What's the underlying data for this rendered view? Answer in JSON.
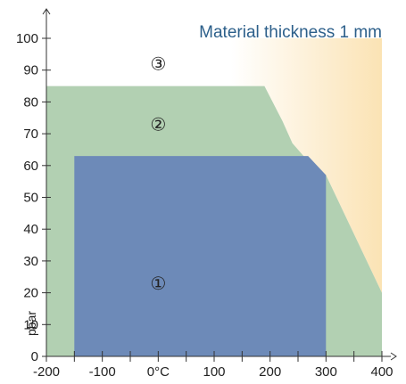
{
  "chart_data": {
    "type": "area",
    "title": "Material thickness  1 mm",
    "xlabel": "",
    "ylabel": "pbar",
    "xlim": [
      -200,
      400
    ],
    "ylim": [
      0,
      100
    ],
    "x_ticks": [
      {
        "value": -200,
        "label": "-200"
      },
      {
        "value": -100,
        "label": "-100"
      },
      {
        "value": 0,
        "label": "0°C"
      },
      {
        "value": 100,
        "label": "100"
      },
      {
        "value": 200,
        "label": "200"
      },
      {
        "value": 300,
        "label": "300"
      },
      {
        "value": 400,
        "label": "400"
      }
    ],
    "x_minor_ticks": [
      -150,
      -50,
      50,
      150,
      250,
      350
    ],
    "y_ticks": [
      {
        "value": 0,
        "label": "0"
      },
      {
        "value": 10,
        "label": "10"
      },
      {
        "value": 20,
        "label": "20"
      },
      {
        "value": 30,
        "label": "30"
      },
      {
        "value": 40,
        "label": "40"
      },
      {
        "value": 50,
        "label": "50"
      },
      {
        "value": 60,
        "label": "60"
      },
      {
        "value": 70,
        "label": "70"
      },
      {
        "value": 80,
        "label": "80"
      },
      {
        "value": 90,
        "label": "90"
      },
      {
        "value": 100,
        "label": "100"
      }
    ],
    "grid": false,
    "regions": [
      {
        "label": "③",
        "label_at": [
          0,
          92
        ],
        "color": "#fbe3b4",
        "points": [
          [
            -200,
            100
          ],
          [
            400,
            100
          ],
          [
            400,
            20
          ],
          [
            300,
            57
          ],
          [
            260,
            63
          ],
          [
            240,
            67
          ],
          [
            222,
            74
          ],
          [
            190,
            85
          ],
          [
            -200,
            85
          ]
        ]
      },
      {
        "label": "②",
        "label_at": [
          0,
          73
        ],
        "color": "#b2d0b2",
        "points": [
          [
            -200,
            0
          ],
          [
            400,
            0
          ],
          [
            400,
            20
          ],
          [
            300,
            57
          ],
          [
            260,
            63
          ],
          [
            240,
            67
          ],
          [
            222,
            74
          ],
          [
            190,
            85
          ],
          [
            -200,
            85
          ]
        ]
      },
      {
        "label": "①",
        "label_at": [
          0,
          23
        ],
        "color": "#6d8ab8",
        "points": [
          [
            -150,
            0
          ],
          [
            300,
            0
          ],
          [
            300,
            57
          ],
          [
            268,
            63
          ],
          [
            -150,
            63
          ]
        ]
      }
    ]
  }
}
